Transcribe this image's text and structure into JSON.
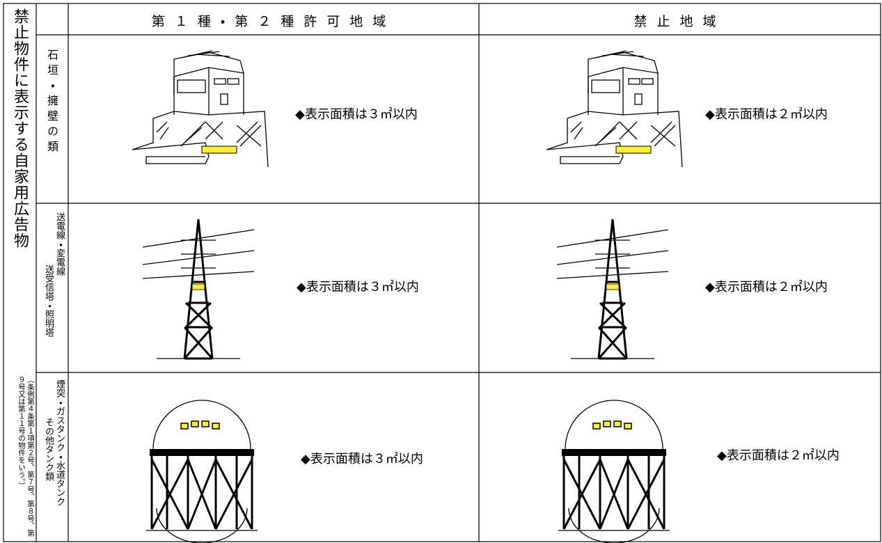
{
  "header": {
    "corner_label": "禁止物件に表示する自家用広告物",
    "note": "（条例第４条第１項第２号、第７号、第８号、第９号又は第１１号の物件をいう。）",
    "columns": [
      "第１種・第２種許可地域",
      "禁止地域"
    ]
  },
  "rows": [
    {
      "label": [
        "石垣・擁壁の類"
      ],
      "cells": [
        "◆表示面積は３㎡以内",
        "◆表示面積は２㎡以内"
      ]
    },
    {
      "label": [
        "送電線・変電線",
        "送受信塔・照明塔"
      ],
      "cells": [
        "◆表示面積は３㎡以内",
        "◆表示面積は２㎡以内"
      ]
    },
    {
      "label": [
        "煙突・ガスタンク・水道タンク",
        "その他タンク類"
      ],
      "cells": [
        "◆表示面積は３㎡以内",
        "◆表示面積は２㎡以内"
      ]
    }
  ]
}
